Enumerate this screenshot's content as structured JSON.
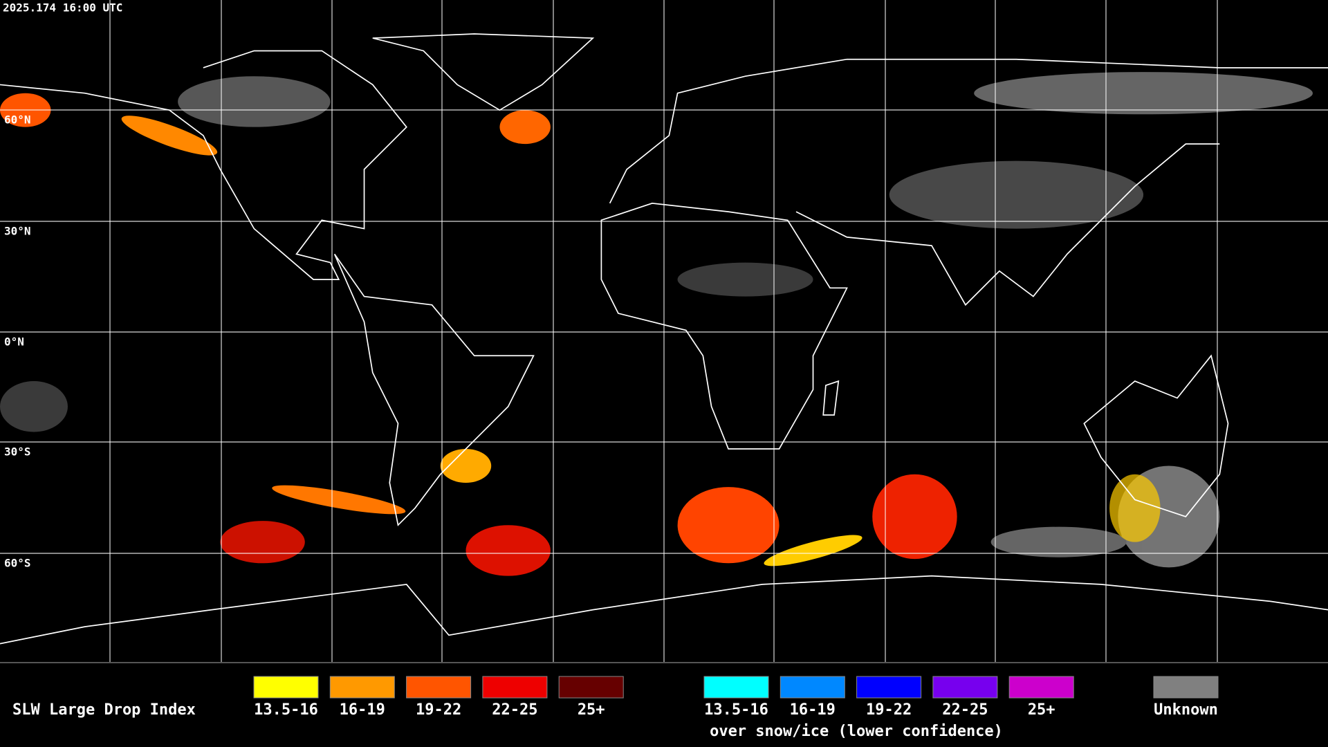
{
  "header": {
    "timestamp": "2025.174 16:00 UTC"
  },
  "map": {
    "lat_labels": [
      "60°N",
      "30°N",
      "0°N",
      "30°S",
      "60°S"
    ]
  },
  "legend": {
    "title": "SLW Large Drop Index",
    "groups": [
      {
        "items": [
          {
            "label": "13.5-16",
            "color": "#ffff00"
          },
          {
            "label": "16-19",
            "color": "#ff9900"
          },
          {
            "label": "19-22",
            "color": "#ff5500"
          },
          {
            "label": "22-25",
            "color": "#ee0000"
          },
          {
            "label": "25+",
            "color": "#660000"
          }
        ]
      },
      {
        "items": [
          {
            "label": "13.5-16",
            "color": "#00ffff"
          },
          {
            "label": "16-19",
            "color": "#0088ff"
          },
          {
            "label": "19-22",
            "color": "#0000ff"
          },
          {
            "label": "22-25",
            "color": "#7700ee"
          },
          {
            "label": "25+",
            "color": "#cc00cc"
          }
        ],
        "caption": "over snow/ice (lower confidence)"
      }
    ],
    "unknown": {
      "label": "Unknown",
      "color": "#808080"
    }
  }
}
